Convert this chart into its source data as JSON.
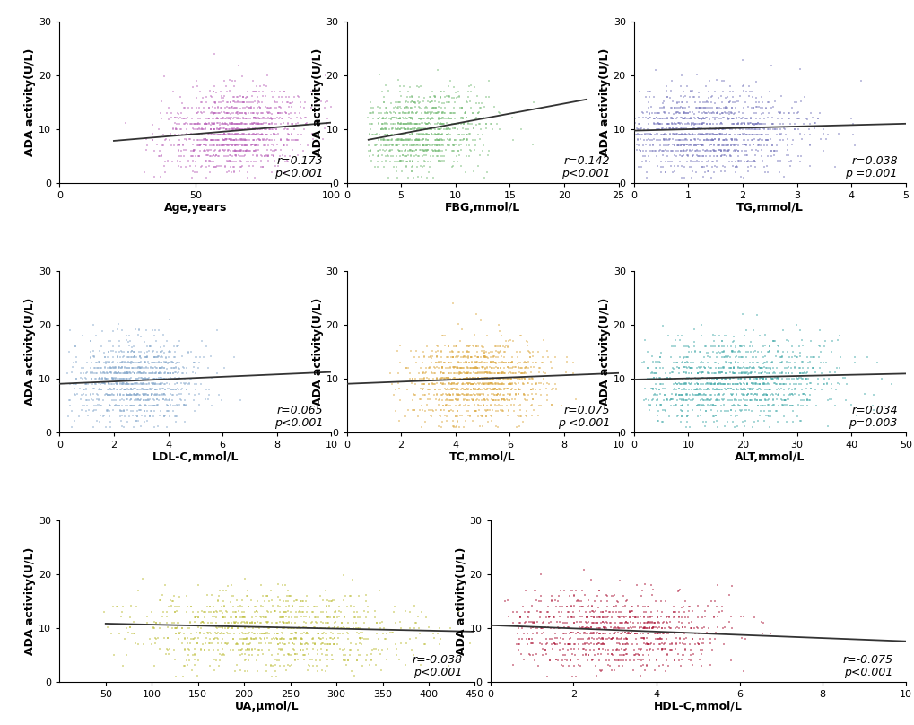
{
  "plots": [
    {
      "xlabel": "Age,years",
      "ylabel": "ADA activity(U/L)",
      "color": "#BB66BB",
      "r": 0.173,
      "r_text": "r=0.173",
      "p_text": "p<0.001",
      "xlim": [
        0,
        100
      ],
      "ylim": [
        0,
        30
      ],
      "xticks": [
        0,
        50,
        100
      ],
      "yticks": [
        0,
        10,
        20,
        30
      ],
      "x_mean": 65,
      "x_std": 13,
      "x_min": 20,
      "x_max": 100,
      "y_mean": 9.5,
      "y_std": 3.8,
      "n_points": 1200,
      "line_x": [
        20,
        100
      ],
      "line_y": [
        7.8,
        11.2
      ]
    },
    {
      "xlabel": "FBG,mmol/L",
      "ylabel": "ADA activity(U/L)",
      "color": "#77BB77",
      "r": 0.142,
      "r_text": "r=0.142",
      "p_text": "p<0.001",
      "xlim": [
        0,
        25
      ],
      "ylim": [
        0,
        30
      ],
      "xticks": [
        0,
        5,
        10,
        15,
        20,
        25
      ],
      "yticks": [
        0,
        10,
        20,
        30
      ],
      "x_mean": 6.5,
      "x_std": 3.2,
      "x_min": 2.0,
      "x_max": 22,
      "y_mean": 9.5,
      "y_std": 3.8,
      "n_points": 1000,
      "line_x": [
        2,
        22
      ],
      "line_y": [
        8.0,
        15.5
      ]
    },
    {
      "xlabel": "TG,mmol/L",
      "ylabel": "ADA activity(U/L)",
      "color": "#7777BB",
      "r": 0.038,
      "r_text": "r=0.038",
      "p_text": "p =0.001",
      "xlim": [
        0,
        5
      ],
      "ylim": [
        0,
        30
      ],
      "xticks": [
        0,
        1,
        2,
        3,
        4,
        5
      ],
      "yticks": [
        0,
        10,
        20,
        30
      ],
      "x_mean": 1.3,
      "x_std": 0.9,
      "x_min": 0.05,
      "x_max": 5.0,
      "y_mean": 9.5,
      "y_std": 3.8,
      "n_points": 1200,
      "line_x": [
        0,
        5
      ],
      "line_y": [
        9.7,
        11.0
      ]
    },
    {
      "xlabel": "LDL-C,mmol/L",
      "ylabel": "ADA activity(U/L)",
      "color": "#88AACC",
      "r": 0.065,
      "r_text": "r=0.065",
      "p_text": "p<0.001",
      "xlim": [
        0,
        10
      ],
      "ylim": [
        0,
        30
      ],
      "xticks": [
        0,
        2,
        4,
        6,
        8,
        10
      ],
      "yticks": [
        0,
        10,
        20,
        30
      ],
      "x_mean": 2.8,
      "x_std": 1.2,
      "x_min": 0.3,
      "x_max": 8.5,
      "y_mean": 9.5,
      "y_std": 3.8,
      "n_points": 1100,
      "line_x": [
        0,
        10
      ],
      "line_y": [
        9.0,
        11.2
      ]
    },
    {
      "xlabel": "TC,mmol/L",
      "ylabel": "ADA activity(U/L)",
      "color": "#DDAA44",
      "r": 0.075,
      "r_text": "r=0.075",
      "p_text": "p <0.001",
      "xlim": [
        0,
        10
      ],
      "ylim": [
        0,
        30
      ],
      "xticks": [
        0,
        2,
        4,
        6,
        8,
        10
      ],
      "yticks": [
        0,
        10,
        20,
        30
      ],
      "x_mean": 4.8,
      "x_std": 1.3,
      "x_min": 1.5,
      "x_max": 10.0,
      "y_mean": 9.5,
      "y_std": 3.8,
      "n_points": 1200,
      "line_x": [
        0,
        10
      ],
      "line_y": [
        9.0,
        11.0
      ]
    },
    {
      "xlabel": "ALT,mmol/L",
      "ylabel": "ADA activity(U/L)",
      "color": "#44AAAA",
      "r": 0.034,
      "r_text": "r=0.034",
      "p_text": "p=0.003",
      "xlim": [
        0,
        50
      ],
      "ylim": [
        0,
        30
      ],
      "xticks": [
        0,
        10,
        20,
        30,
        40,
        50
      ],
      "yticks": [
        0,
        10,
        20,
        30
      ],
      "x_mean": 18,
      "x_std": 10,
      "x_min": 2,
      "x_max": 48,
      "y_mean": 9.5,
      "y_std": 3.8,
      "n_points": 1200,
      "line_x": [
        0,
        50
      ],
      "line_y": [
        9.8,
        10.9
      ]
    },
    {
      "xlabel": "UA,μmol/L",
      "ylabel": "ADA activity(U/L)",
      "color": "#BBBB33",
      "r": -0.038,
      "r_text": "r=-0.038",
      "p_text": "p<0.001",
      "xlim": [
        0,
        450
      ],
      "ylim": [
        0,
        30
      ],
      "xticks": [
        50,
        100,
        150,
        200,
        250,
        300,
        350,
        400,
        450
      ],
      "yticks": [
        0,
        10,
        20,
        30
      ],
      "x_mean": 230,
      "x_std": 75,
      "x_min": 50,
      "x_max": 450,
      "y_mean": 9.5,
      "y_std": 3.8,
      "n_points": 1000,
      "line_x": [
        50,
        450
      ],
      "line_y": [
        10.8,
        9.3
      ]
    },
    {
      "xlabel": "HDL-C,mmol/L",
      "ylabel": "ADA activity(U/L)",
      "color": "#AA1133",
      "r": -0.075,
      "r_text": "r=-0.075",
      "p_text": "p<0.001",
      "xlim": [
        0,
        10
      ],
      "ylim": [
        0,
        30
      ],
      "xticks": [
        0,
        2,
        4,
        6,
        8,
        10
      ],
      "yticks": [
        0,
        10,
        20,
        30
      ],
      "x_mean": 2.8,
      "x_std": 1.4,
      "x_min": 0.5,
      "x_max": 9.0,
      "y_mean": 9.5,
      "y_std": 3.5,
      "n_points": 900,
      "line_x": [
        0,
        10
      ],
      "line_y": [
        10.5,
        7.5
      ]
    }
  ],
  "background_color": "#ffffff",
  "line_color": "#333333",
  "font_size_label": 9,
  "font_size_annot": 9,
  "font_size_tick": 8
}
